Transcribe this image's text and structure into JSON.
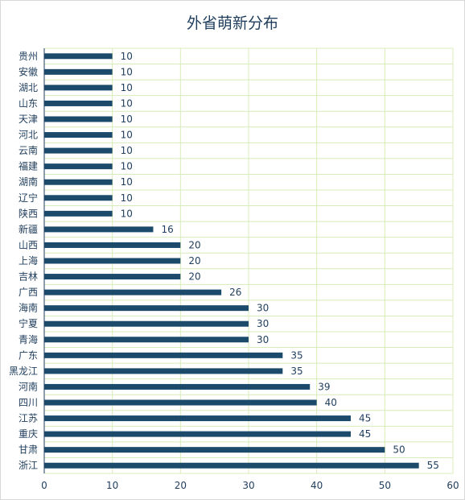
{
  "chart_data": {
    "type": "bar",
    "orientation": "horizontal",
    "title": "外省萌新分布",
    "categories": [
      "贵州",
      "安徽",
      "湖北",
      "山东",
      "天津",
      "河北",
      "云南",
      "福建",
      "湖南",
      "辽宁",
      "陕西",
      "新疆",
      "山西",
      "上海",
      "吉林",
      "广西",
      "海南",
      "宁夏",
      "青海",
      "广东",
      "黑龙江",
      "河南",
      "四川",
      "江苏",
      "重庆",
      "甘肃",
      "浙江"
    ],
    "values": [
      10,
      10,
      10,
      10,
      10,
      10,
      10,
      10,
      10,
      10,
      10,
      16,
      20,
      20,
      20,
      26,
      30,
      30,
      30,
      35,
      35,
      39,
      40,
      45,
      45,
      50,
      55
    ],
    "xlim": [
      0,
      60
    ],
    "xticks": [
      0,
      10,
      20,
      30,
      40,
      50,
      60
    ],
    "grid": true,
    "legend": "none",
    "colors": {
      "bar": "#1b4a6b",
      "grid": "#d7ecb9",
      "text": "#1f3d5c"
    }
  }
}
